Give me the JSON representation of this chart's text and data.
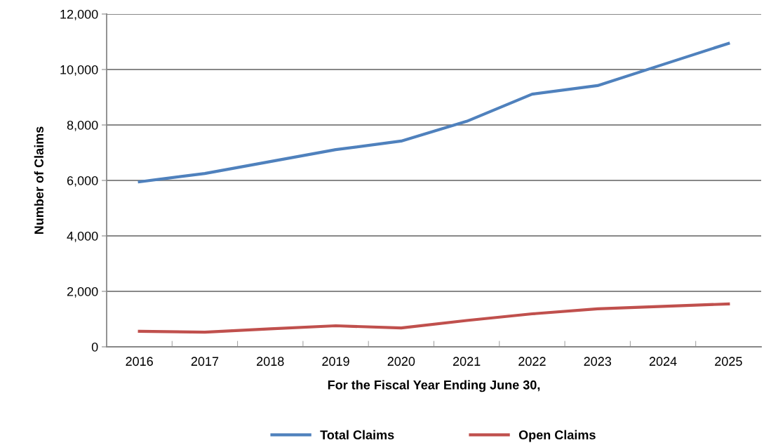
{
  "chart_data": {
    "type": "line",
    "xlabel": "For the Fiscal Year Ending June 30,",
    "ylabel": "Number of Claims",
    "categories": [
      "2016",
      "2017",
      "2018",
      "2019",
      "2020",
      "2021",
      "2022",
      "2023",
      "2024",
      "2025"
    ],
    "series": [
      {
        "name": "Total Claims",
        "color": "#4f81bd",
        "values": [
          5950,
          6250,
          6680,
          7110,
          7420,
          8130,
          9110,
          9420,
          10180,
          10940
        ]
      },
      {
        "name": "Open Claims",
        "color": "#c0504d",
        "values": [
          560,
          530,
          650,
          760,
          680,
          950,
          1190,
          1370,
          1460,
          1545
        ]
      }
    ],
    "ylim": [
      0,
      12000
    ],
    "yticks": [
      {
        "value": 0,
        "label": "0"
      },
      {
        "value": 2000,
        "label": "2,000"
      },
      {
        "value": 4000,
        "label": "4,000"
      },
      {
        "value": 6000,
        "label": "6,000"
      },
      {
        "value": 8000,
        "label": "8,000"
      },
      {
        "value": 10000,
        "label": "10,000"
      },
      {
        "value": 12000,
        "label": "12,000"
      }
    ],
    "grid": "y",
    "legend": "bottom",
    "marker": "none",
    "line_style": "solid"
  }
}
